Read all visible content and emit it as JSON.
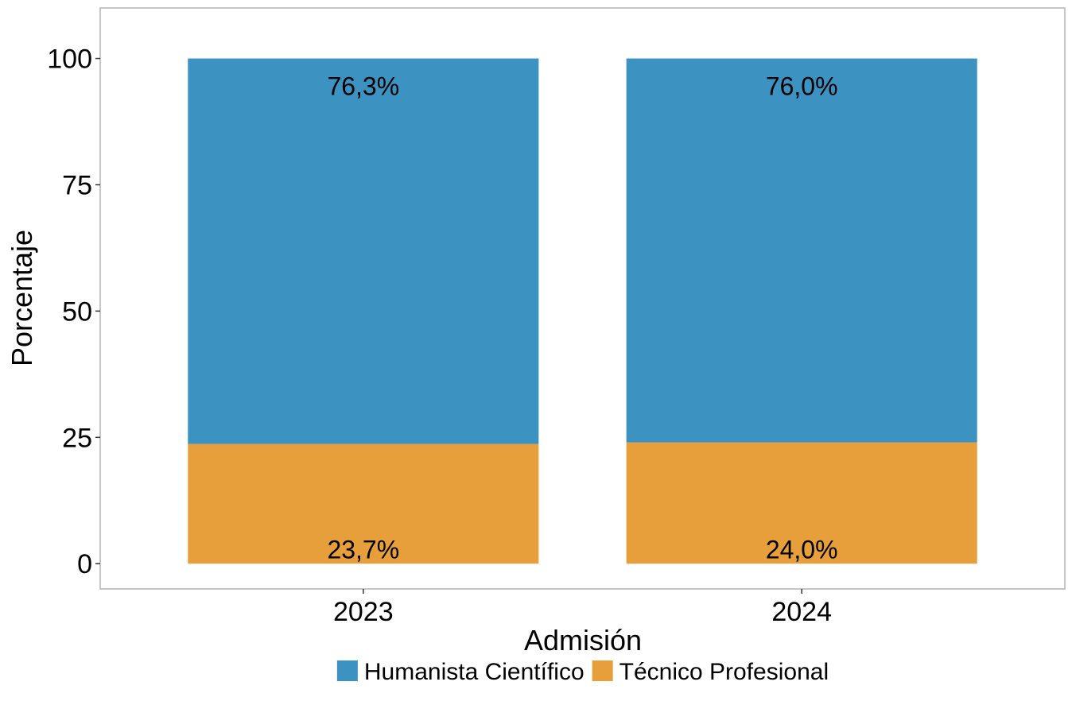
{
  "chart_data": {
    "type": "bar",
    "stacked": true,
    "categories": [
      "2023",
      "2024"
    ],
    "series": [
      {
        "name": "Técnico Profesional",
        "values": [
          23.7,
          24.0
        ],
        "labels": [
          "23,7%",
          "24,0%"
        ],
        "color": "#E69F3A"
      },
      {
        "name": "Humanista Científico",
        "values": [
          76.3,
          76.0
        ],
        "labels": [
          "76,3%",
          "76,0%"
        ],
        "color": "#3C93C1"
      }
    ],
    "xlabel": "Admisión",
    "ylabel": "Porcentaje",
    "ylim": [
      -5,
      110
    ],
    "yticks": [
      0,
      25,
      50,
      75,
      100
    ],
    "ytick_labels": [
      "0",
      "25",
      "50",
      "75",
      "100"
    ],
    "legend": {
      "position": "bottom",
      "entries": [
        "Humanista Científico",
        "Técnico Profesional"
      ],
      "labels": [
        "Humanista Científico",
        "Técnico Profesional"
      ],
      "colors": [
        "#3C93C1",
        "#E69F3A"
      ]
    },
    "grid": false
  }
}
